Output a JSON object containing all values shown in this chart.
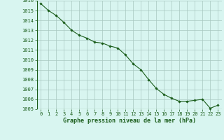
{
  "x": [
    0,
    1,
    2,
    3,
    4,
    5,
    6,
    7,
    8,
    9,
    10,
    11,
    12,
    13,
    14,
    15,
    16,
    17,
    18,
    19,
    20,
    21,
    22,
    23
  ],
  "y": [
    1015.7,
    1015.0,
    1014.5,
    1013.8,
    1013.0,
    1012.5,
    1012.2,
    1011.8,
    1011.7,
    1011.4,
    1011.2,
    1010.5,
    1009.6,
    1009.0,
    1008.0,
    1007.1,
    1006.5,
    1006.1,
    1005.8,
    1005.8,
    1005.9,
    1006.0,
    1005.1,
    1005.4
  ],
  "line_color": "#1a5c1a",
  "marker": "D",
  "marker_size": 1.8,
  "line_width": 0.8,
  "bg_color": "#d8f5f0",
  "grid_color": "#a8c8c0",
  "xlabel": "Graphe pression niveau de la mer (hPa)",
  "xlabel_color": "#1a5c1a",
  "xlabel_fontsize": 6.0,
  "ylabel_fontsize": 5.0,
  "tick_color": "#1a5c1a",
  "tick_fontsize": 5.0,
  "ylim": [
    1005,
    1016
  ],
  "xlim": [
    -0.5,
    23.5
  ],
  "yticks": [
    1005,
    1006,
    1007,
    1008,
    1009,
    1010,
    1011,
    1012,
    1013,
    1014,
    1015,
    1016
  ],
  "xticks": [
    0,
    1,
    2,
    3,
    4,
    5,
    6,
    7,
    8,
    9,
    10,
    11,
    12,
    13,
    14,
    15,
    16,
    17,
    18,
    19,
    20,
    21,
    22,
    23
  ]
}
